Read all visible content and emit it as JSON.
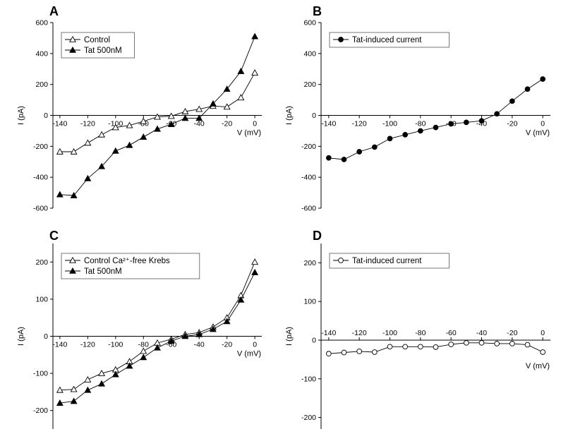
{
  "chart_data": [
    {
      "type": "line",
      "panel_label": "A",
      "xlabel": "V (mV)",
      "ylabel": "I (pA)",
      "xlim": [
        -145,
        5
      ],
      "ylim": [
        -600,
        600
      ],
      "x_ticks": [
        -140,
        -120,
        -100,
        -80,
        -60,
        -40,
        -20,
        0
      ],
      "y_ticks": [
        600,
        400,
        200,
        0,
        -200,
        -400,
        -600
      ],
      "x_axis_at_zero": true,
      "legend_position": "top-left",
      "series": [
        {
          "name": "Control",
          "marker": "open-triangle",
          "x": [
            -140,
            -130,
            -120,
            -110,
            -100,
            -90,
            -80,
            -70,
            -60,
            -50,
            -40,
            -30,
            -20,
            -10,
            0
          ],
          "y": [
            -235,
            -235,
            -178,
            -125,
            -78,
            -65,
            -38,
            -10,
            -5,
            25,
            40,
            60,
            55,
            115,
            275
          ]
        },
        {
          "name": "Tat 500nM",
          "marker": "filled-triangle",
          "x": [
            -140,
            -130,
            -120,
            -110,
            -100,
            -90,
            -80,
            -70,
            -60,
            -50,
            -40,
            -30,
            -20,
            -10,
            0
          ],
          "y": [
            -512,
            -518,
            -408,
            -330,
            -230,
            -193,
            -140,
            -88,
            -58,
            -18,
            -18,
            75,
            170,
            285,
            510
          ]
        }
      ]
    },
    {
      "type": "line",
      "panel_label": "B",
      "xlabel": "V (mV)",
      "ylabel": "I (pA)",
      "xlim": [
        -145,
        5
      ],
      "ylim": [
        -600,
        600
      ],
      "x_ticks": [
        -140,
        -120,
        -100,
        -80,
        -60,
        -40,
        -20,
        0
      ],
      "y_ticks": [
        600,
        400,
        200,
        0,
        -200,
        -400,
        -600
      ],
      "x_axis_at_zero": true,
      "legend_position": "top-left",
      "series": [
        {
          "name": "Tat-induced current",
          "marker": "filled-circle",
          "x": [
            -140,
            -130,
            -120,
            -110,
            -100,
            -90,
            -80,
            -70,
            -60,
            -50,
            -40,
            -30,
            -20,
            -10,
            0
          ],
          "y": [
            -275,
            -285,
            -235,
            -205,
            -150,
            -125,
            -100,
            -78,
            -55,
            -45,
            -35,
            10,
            92,
            170,
            235
          ]
        }
      ]
    },
    {
      "type": "line",
      "panel_label": "C",
      "xlabel": "V (mV)",
      "ylabel": "I (pA)",
      "xlim": [
        -145,
        5
      ],
      "ylim": [
        -250,
        250
      ],
      "x_ticks": [
        -140,
        -120,
        -100,
        -80,
        -60,
        -40,
        -20,
        0
      ],
      "y_ticks": [
        200,
        100,
        0,
        -100,
        -200
      ],
      "x_axis_at_zero": true,
      "legend_position": "top-left",
      "series": [
        {
          "name": "Control Ca²⁺-free Krebs",
          "marker": "open-triangle",
          "x": [
            -140,
            -130,
            -120,
            -110,
            -100,
            -90,
            -80,
            -70,
            -60,
            -50,
            -40,
            -30,
            -20,
            -10,
            0
          ],
          "y": [
            -145,
            -143,
            -117,
            -100,
            -90,
            -68,
            -40,
            -18,
            -8,
            5,
            10,
            25,
            50,
            110,
            200
          ]
        },
        {
          "name": "Tat 500nM",
          "marker": "filled-triangle",
          "x": [
            -140,
            -130,
            -120,
            -110,
            -100,
            -90,
            -80,
            -70,
            -60,
            -50,
            -40,
            -30,
            -20,
            -10,
            0
          ],
          "y": [
            -180,
            -175,
            -145,
            -128,
            -103,
            -80,
            -57,
            -31,
            -13,
            0,
            5,
            19,
            40,
            98,
            172
          ]
        }
      ]
    },
    {
      "type": "line",
      "panel_label": "D",
      "xlabel": "V (mV)",
      "ylabel": "I (pA)",
      "xlim": [
        -145,
        5
      ],
      "ylim": [
        -230,
        250
      ],
      "x_ticks": [
        -140,
        -120,
        -100,
        -80,
        -60,
        -40,
        -20,
        0
      ],
      "y_ticks": [
        200,
        100,
        0,
        -100,
        -200
      ],
      "x_axis_at_zero": true,
      "x_tick_labels_above_axis": true,
      "legend_position": "top-left",
      "series": [
        {
          "name": "Tat-induced current",
          "marker": "open-circle",
          "x": [
            -140,
            -130,
            -120,
            -110,
            -100,
            -90,
            -80,
            -70,
            -60,
            -50,
            -40,
            -30,
            -20,
            -10,
            0
          ],
          "y": [
            -35,
            -32,
            -29,
            -31,
            -17,
            -17,
            -17,
            -18,
            -11,
            -7,
            -7,
            -9,
            -9,
            -12,
            -31
          ]
        }
      ]
    }
  ]
}
